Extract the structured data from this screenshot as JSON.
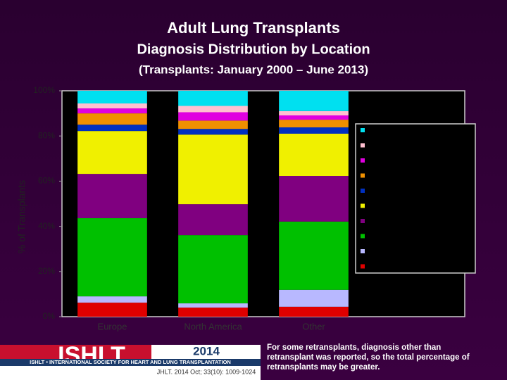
{
  "chart_data": {
    "type": "bar",
    "stacked": true,
    "title": "Adult Lung Transplants",
    "subtitle": "Diagnosis Distribution by Location",
    "period": "(Transplants: January 2000 – June 2013)",
    "y_label": "% of Transplants",
    "categories": [
      "Europe",
      "North America",
      "Other"
    ],
    "ylim": [
      0,
      100
    ],
    "yticks": [
      {
        "value": 0,
        "label": "0%"
      },
      {
        "value": 20,
        "label": "20%"
      },
      {
        "value": 40,
        "label": "40%"
      },
      {
        "value": 60,
        "label": "60%"
      },
      {
        "value": 80,
        "label": "80%"
      },
      {
        "value": 100,
        "label": "100%"
      }
    ],
    "series": [
      {
        "color": "#e00000",
        "values": [
          6.2,
          4,
          4.4
        ]
      },
      {
        "color": "#b8b8ff",
        "values": [
          2.8,
          1.9,
          7.5
        ]
      },
      {
        "color": "#00c000",
        "values": [
          34.6,
          30.2,
          30.2
        ]
      },
      {
        "color": "#800080",
        "values": [
          19.6,
          13.7,
          20.2
        ]
      },
      {
        "color": "#f0f000",
        "values": [
          19,
          30.8,
          18.7
        ]
      },
      {
        "color": "#0030c0",
        "values": [
          2.8,
          2.5,
          2.8
        ]
      },
      {
        "color": "#f09000",
        "values": [
          5,
          3.7,
          3.4
        ]
      },
      {
        "color": "#e000e0",
        "values": [
          2.2,
          3.7,
          1.9
        ]
      },
      {
        "color": "#ffc0d0",
        "values": [
          2.2,
          2.8,
          1.9
        ]
      },
      {
        "color": "#00e0f0",
        "values": [
          5.6,
          6.7,
          9
        ]
      }
    ]
  },
  "footer": {
    "logo": "ISHLT",
    "society": "ISHLT • INTERNATIONAL SOCIETY FOR HEART AND LUNG TRANSPLANTATION",
    "year": "2014",
    "citation": "JHLT. 2014 Oct; 33(10): 1009-1024",
    "note": [
      "For some retransplants, diagnosis other than",
      "retransplant was reported, so the total percentage of",
      "retransplants may be greater."
    ]
  }
}
